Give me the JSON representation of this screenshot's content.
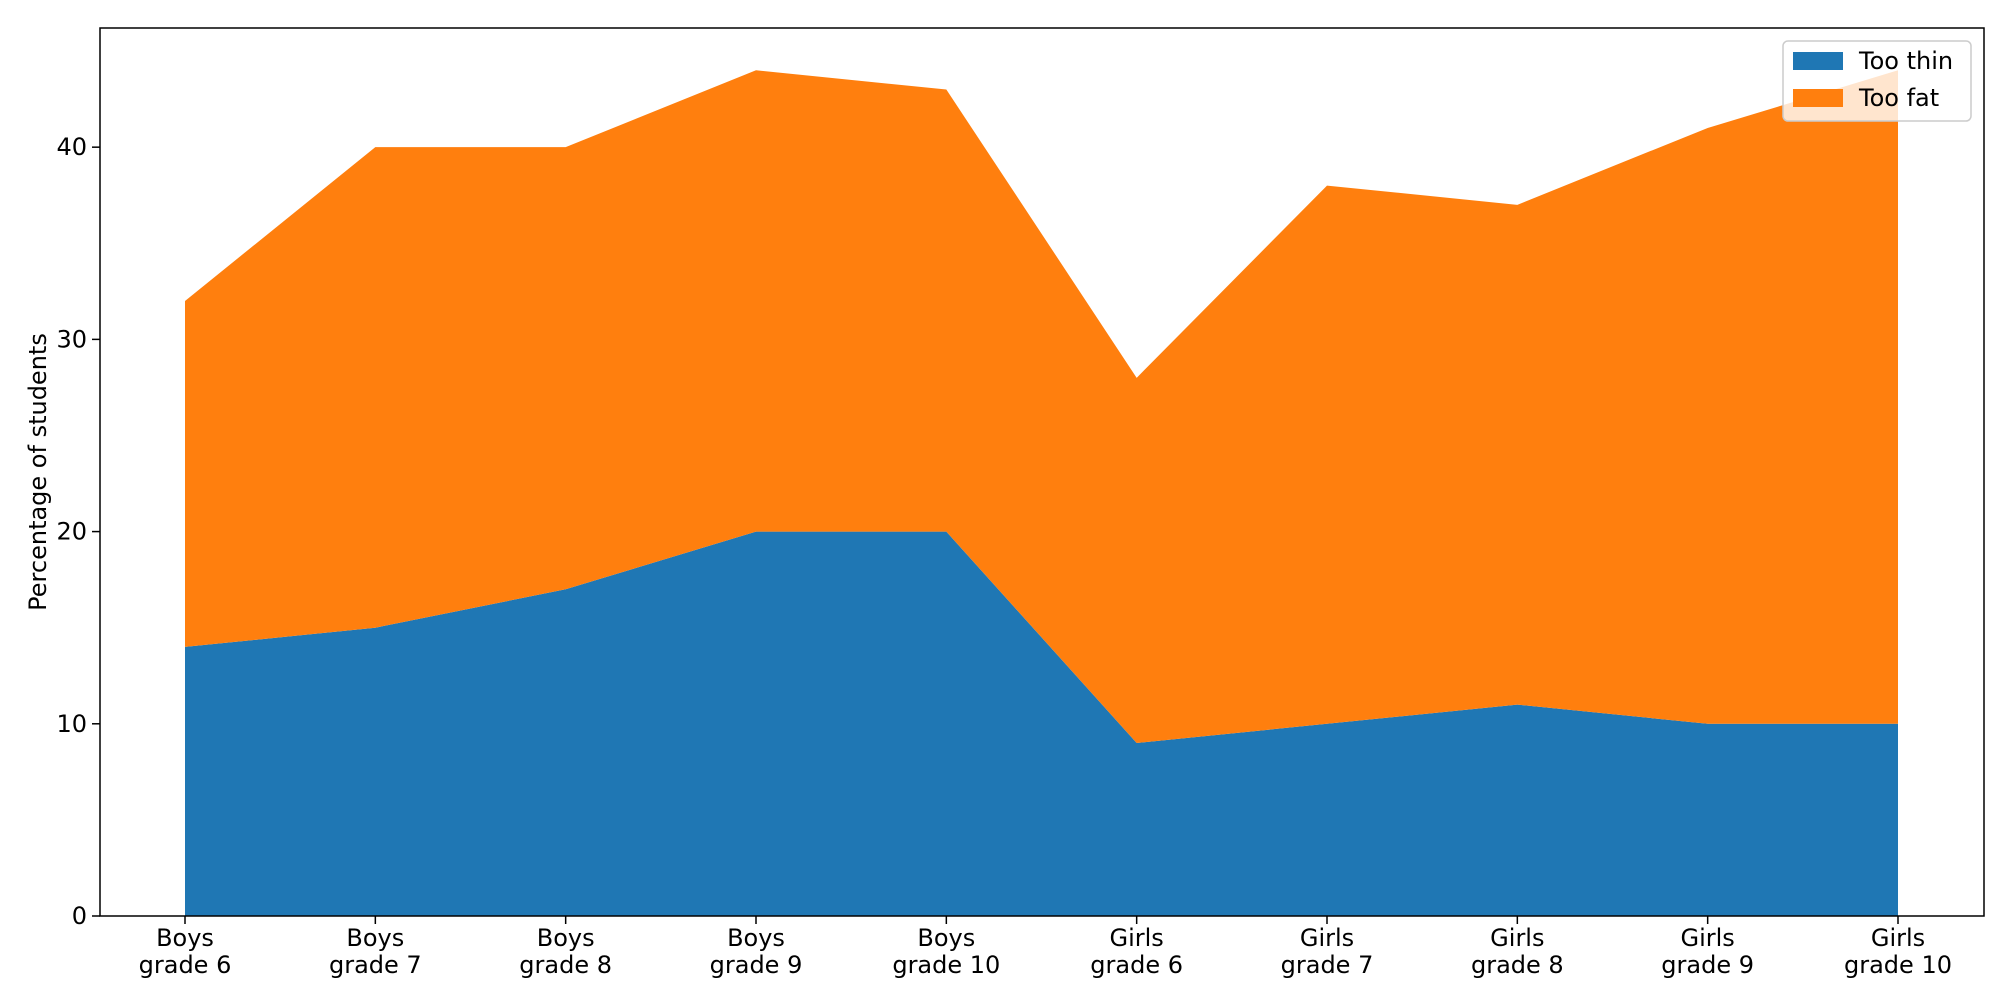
{
  "chart_data": {
    "type": "area",
    "stacked": true,
    "categories": [
      [
        "Boys",
        "grade 6"
      ],
      [
        "Boys",
        "grade 7"
      ],
      [
        "Boys",
        "grade 8"
      ],
      [
        "Boys",
        "grade 9"
      ],
      [
        "Boys",
        "grade 10"
      ],
      [
        "Girls",
        "grade 6"
      ],
      [
        "Girls",
        "grade 7"
      ],
      [
        "Girls",
        "grade 8"
      ],
      [
        "Girls",
        "grade 9"
      ],
      [
        "Girls",
        "grade 10"
      ]
    ],
    "series": [
      {
        "name": "Too thin",
        "color": "#1f77b4",
        "values": [
          14,
          15,
          17,
          20,
          20,
          9,
          10,
          11,
          10,
          10
        ]
      },
      {
        "name": "Too fat",
        "color": "#ff7f0e",
        "values": [
          18,
          25,
          23,
          24,
          23,
          19,
          28,
          26,
          31,
          34
        ]
      }
    ],
    "xlabel": "",
    "ylabel": "Percentage of students",
    "ylim": [
      0,
      46.2
    ],
    "yticks": [
      0,
      10,
      20,
      30,
      40
    ],
    "grid": false,
    "legend": "top-right"
  }
}
